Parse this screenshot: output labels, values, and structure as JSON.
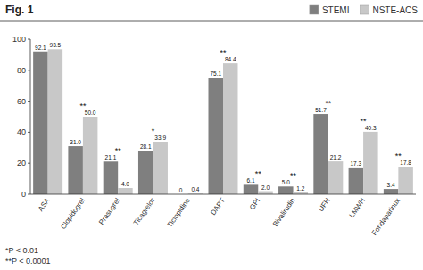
{
  "chart_data": {
    "type": "bar",
    "title": "Fig. 1",
    "categories": [
      "ASA",
      "Clopidogrel",
      "Prasugrel",
      "Ticagrelor",
      "Ticlopidine",
      "DAPT",
      "GPI",
      "Bivalirudin",
      "UFH",
      "LMWH",
      "Fondaparinux"
    ],
    "series": [
      {
        "name": "STEMI",
        "color": "#7f7f7f",
        "values": [
          92.1,
          31.0,
          21.1,
          28.1,
          0,
          75.1,
          6.1,
          5.0,
          51.7,
          17.3,
          3.4
        ],
        "value_labels": [
          "92.1",
          "31.0",
          "21.1",
          "28.1",
          "0",
          "75.1",
          "6.1",
          "5.0",
          "51.7",
          "17.3",
          "3.4"
        ]
      },
      {
        "name": "NSTE-ACS",
        "color": "#c8c8c8",
        "values": [
          93.5,
          50.0,
          4.0,
          33.9,
          0.4,
          84.4,
          2.0,
          1.2,
          21.2,
          40.3,
          17.8
        ],
        "value_labels": [
          "93.5",
          "50.0",
          "4.0",
          "33.9",
          "0.4",
          "84.4",
          "2.0",
          "1.2",
          "21.2",
          "40.3",
          "17.8"
        ]
      }
    ],
    "ylim": [
      0,
      100
    ],
    "yticks": [
      0,
      20,
      40,
      60,
      80,
      100
    ],
    "grid": false,
    "legend": "upper right",
    "data_labels": true,
    "annotations": [
      {
        "category": "Clopidogrel",
        "text": "**"
      },
      {
        "category": "Prasugrel",
        "text": "**"
      },
      {
        "category": "Ticagrelor",
        "text": "*"
      },
      {
        "category": "DAPT",
        "text": "**"
      },
      {
        "category": "GPI",
        "text": "**"
      },
      {
        "category": "Bivalirudin",
        "text": "**"
      },
      {
        "category": "UFH",
        "text": "**"
      },
      {
        "category": "LMWH",
        "text": "**"
      },
      {
        "category": "Fondaparinux",
        "text": "**"
      }
    ],
    "footnotes": [
      "*P < 0.01",
      "**P < 0.0001"
    ]
  }
}
